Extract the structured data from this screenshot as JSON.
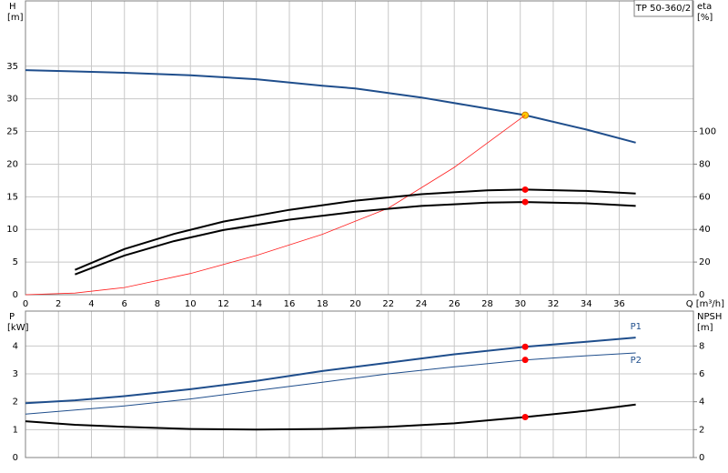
{
  "chart_data": [
    {
      "type": "line",
      "title": "TP 50-360/2",
      "y_label": "H",
      "y_unit": "[m]",
      "y2_label": "eta",
      "y2_unit": "[%]",
      "x_label": "Q [m³/h]",
      "xlim": [
        0,
        40.5
      ],
      "xticks": [
        0,
        2,
        4,
        6,
        8,
        10,
        12,
        14,
        16,
        18,
        20,
        22,
        24,
        26,
        28,
        30,
        32,
        34,
        36
      ],
      "ylim": [
        0,
        45
      ],
      "yticks": [
        0,
        5,
        10,
        15,
        20,
        25,
        30,
        35
      ],
      "y2lim": [
        0,
        180
      ],
      "y2ticks": [
        0,
        20,
        40,
        60,
        80,
        100
      ],
      "grid": true,
      "series": [
        {
          "color": "#1f4e8c",
          "width": 2,
          "x": [
            0,
            3,
            6,
            10,
            14,
            18,
            20,
            24,
            28,
            30.3,
            34,
            37
          ],
          "values": [
            34.4,
            34.2,
            34.0,
            33.6,
            33.0,
            32.0,
            31.6,
            30.2,
            28.5,
            27.5,
            25.3,
            23.3
          ],
          "marker": {
            "index": 9,
            "color": "#ffcc00"
          }
        },
        {
          "color": "#ff2020",
          "width": 0.8,
          "axis": "y2",
          "x": [
            0,
            3,
            6,
            10,
            14,
            18,
            22,
            26,
            30.3
          ],
          "values": [
            0,
            1,
            4.4,
            13,
            24,
            37,
            53,
            78,
            110
          ]
        },
        {
          "color": "#000000",
          "width": 2,
          "x": [
            3,
            6,
            9,
            12,
            16,
            20,
            24,
            28,
            30.3,
            34,
            37
          ],
          "values": [
            3.8,
            7,
            9.3,
            11.2,
            13,
            14.4,
            15.4,
            16,
            16.1,
            15.9,
            15.5
          ],
          "marker": {
            "index": 8,
            "color": "#ff0000"
          }
        },
        {
          "color": "#000000",
          "width": 2,
          "x": [
            3,
            6,
            9,
            12,
            16,
            20,
            24,
            28,
            30.3,
            34,
            37
          ],
          "values": [
            3.1,
            6,
            8.2,
            9.9,
            11.5,
            12.7,
            13.6,
            14.1,
            14.2,
            14.0,
            13.6
          ],
          "marker": {
            "index": 8,
            "color": "#ff0000"
          }
        }
      ]
    },
    {
      "type": "line",
      "y_label": "P",
      "y_unit": "[kW]",
      "y2_label": "NPSH",
      "y2_unit": "[m]",
      "ylim": [
        0,
        5.25
      ],
      "yticks": [
        0,
        1,
        2,
        3,
        4
      ],
      "y2lim": [
        0,
        10.5
      ],
      "y2ticks": [
        0,
        2,
        4,
        6,
        8
      ],
      "grid": true,
      "series": [
        {
          "name": "P1",
          "color": "#1f4e8c",
          "width": 2,
          "x": [
            0,
            3,
            6,
            10,
            14,
            18,
            22,
            26,
            30.3,
            34,
            37
          ],
          "values": [
            1.95,
            2.05,
            2.2,
            2.45,
            2.75,
            3.1,
            3.4,
            3.7,
            3.97,
            4.15,
            4.3
          ],
          "marker": {
            "index": 8,
            "color": "#ff0000"
          }
        },
        {
          "name": "P2",
          "color": "#1f4e8c",
          "width": 1,
          "x": [
            0,
            6,
            10,
            14,
            18,
            22,
            26,
            30.3,
            34,
            37
          ],
          "values": [
            1.56,
            1.85,
            2.1,
            2.4,
            2.7,
            3.0,
            3.25,
            3.5,
            3.65,
            3.75
          ],
          "marker": {
            "index": 7,
            "color": "#ff0000"
          }
        },
        {
          "color": "#000000",
          "width": 2,
          "axis": "y2",
          "x": [
            0,
            3,
            6,
            10,
            14,
            18,
            22,
            26,
            30.3,
            34,
            37
          ],
          "values": [
            2.6,
            2.35,
            2.2,
            2.05,
            2.0,
            2.05,
            2.2,
            2.45,
            2.9,
            3.35,
            3.8
          ],
          "marker": {
            "index": 8,
            "color": "#ff0000"
          }
        }
      ]
    }
  ]
}
